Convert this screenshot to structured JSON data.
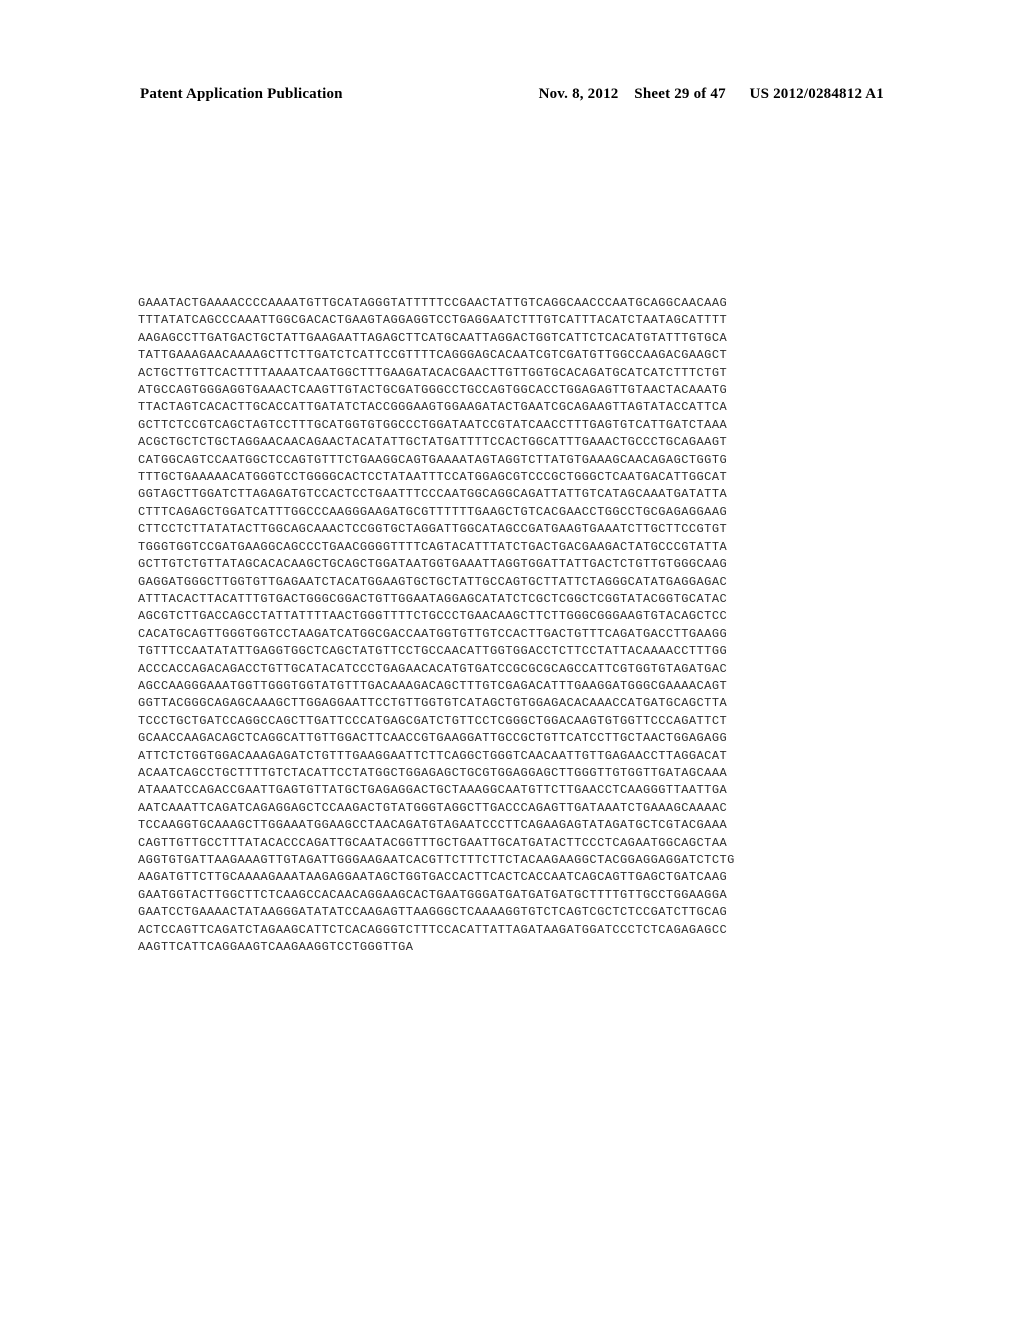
{
  "header": {
    "left": "Patent Application Publication",
    "date": "Nov. 8, 2012",
    "sheet": "Sheet 29 of 47",
    "pubno": "US 2012/0284812 A1"
  },
  "sequence": {
    "lines": [
      "GAAATACTGAAAACCCCAAAATGTTGCATAGGGTATTTTTCCGAACTATTGTCAGGCAACCCAATGCAGGCAACAAG",
      "TTTATATCAGCCCAAATTGGCGACACTGAAGTAGGAGGTCCTGAGGAATCTTTGTCATTTACATCTAATAGCATTTT",
      "AAGAGCCTTGATGACTGCTATTGAAGAATTAGAGCTTCATGCAATTAGGACTGGTCATTCTCACATGTATTTGTGCA",
      "TATTGAAAGAACAAAAGCTTCTTGATCTCATTCCGTTTTCAGGGAGCACAATCGTCGATGTTGGCCAAGACGAAGCT",
      "ACTGCTTGTTCACTTTTAAAATCAATGGCTTTGAAGATACACGAACTTGTTGGTGCACAGATGCATCATCTTTCTGT",
      "ATGCCAGTGGGAGGTGAAACTCAAGTTGTACTGCGATGGGCCTGCCAGTGGCACCTGGAGAGTTGTAACTACAAATG",
      "TTACTAGTCACACTTGCACCATTGATATCTACCGGGAAGTGGAAGATACTGAATCGCAGAAGTTAGTATACCATTCA",
      "GCTTCTCCGTCAGCTAGTCCTTTGCATGGTGTGGCCCTGGATAATCCGTATCAACCTTTGAGTGTCATTGATCTAAA",
      "ACGCTGCTCTGCTAGGAACAACAGAACTACATATTGCTATGATTTTCCACTGGCATTTGAAACTGCCCTGCAGAAGT",
      "CATGGCAGTCCAATGGCTCCAGTGTTTCTGAAGGCAGTGAAAATAGTAGGTCTTATGTGAAAGCAACAGAGCTGGTG",
      "TTTGCTGAAAAACATGGGTCCTGGGGCACTCCTATAATTTCCATGGAGCGTCCCGCTGGGCTCAATGACATTGGCAT",
      "GGTAGCTTGGATCTTAGAGATGTCCACTCCTGAATTTCCCAATGGCAGGCAGATTATTGTCATAGCAAATGATATTA",
      "CTTTCAGAGCTGGATCATTTGGCCCAAGGGAAGATGCGTTTTTTGAAGCTGTCACGAACCTGGCCTGCGAGAGGAAG",
      "CTTCCTCTTATATACTTGGCAGCAAACTCCGGTGCTAGGATTGGCATAGCCGATGAAGTGAAATCTTGCTTCCGTGT",
      "TGGGTGGTCCGATGAAGGCAGCCCTGAACGGGGTTTTCAGTACATTTATCTGACTGACGAAGACTATGCCCGTATTA",
      "GCTTGTCTGTTATAGCACACAAGCTGCAGCTGGATAATGGTGAAATTAGGTGGATTATTGACTCTGTTGTGGGCAAG",
      "GAGGATGGGCTTGGTGTTGAGAATCTACATGGAAGTGCTGCTATTGCCAGTGCTTATTCTAGGGCATATGAGGAGAC",
      "ATTTACACTTACATTTGTGACTGGGCGGACTGTTGGAATAGGAGCATATCTCGCTCGGCTCGGTATACGGTGCATAC",
      "AGCGTCTTGACCAGCCTATTATTTTAACTGGGTTTTCTGCCCTGAACAAGCTTCTTGGGCGGGAAGTGTACAGCTCC",
      "CACATGCAGTTGGGTGGTCCTAAGATCATGGCGACCAATGGTGTTGTCCACTTGACTGTTTCAGATGACCTTGAAGG",
      "TGTTTCCAATATATTGAGGTGGCTCAGCTATGTTCCTGCCAACATTGGTGGACCTCTTCCTATTACAAAACCTTTGG",
      "ACCCACCAGACAGACCTGTTGCATACATCCCTGAGAACACATGTGATCCGCGCGCAGCCATTCGTGGTGTAGATGAC",
      "AGCCAAGGGAAATGGTTGGGTGGTATGTTTGACAAAGACAGCTTTGTCGAGACATTTGAAGGATGGGCGAAAACAGT",
      "GGTTACGGGCAGAGCAAAGCTTGGAGGAATTCCTGTTGGTGTCATAGCTGTGGAGACACAAACCATGATGCAGCTTA",
      "TCCCTGCTGATCCAGGCCAGCTTGATTCCCATGAGCGATCTGTTCCTCGGGCTGGACAAGTGTGGTTCCCAGATTCT",
      "GCAACCAAGACAGCTCAGGCATTGTTGGACTTCAACCGTGAAGGATTGCCGCTGTTCATCCTTGCTAACTGGAGAGG",
      "ATTCTCTGGTGGACAAAGAGATCTGTTTGAAGGAATTCTTCAGGCTGGGTCAACAATTGTTGAGAACCTTAGGACAT",
      "ACAATCAGCCTGCTTTTGTCTACATTCCTATGGCTGGAGAGCTGCGTGGAGGAGCTTGGGTTGTGGTTGATAGCAAA",
      "ATAAATCCAGACCGAATTGAGTGTTATGCTGAGAGGACTGCTAAAGGCAATGTTCTTGAACCTCAAGGGTTAATTGA",
      "AATCAAATTCAGATCAGAGGAGCTCCAAGACTGTATGGGTAGGCTTGACCCAGAGTTGATAAATCTGAAAGCAAAAC",
      "TCCAAGGTGCAAAGCTTGGAAATGGAAGCCTAACAGATGTAGAATCCCTTCAGAAGAGTATAGATGCTCGTACGAAA",
      "CAGTTGTTGCCTTTATACACCCAGATTGCAATACGGTTTGCTGAATTGCATGATACTTCCCTCAGAATGGCAGCTAA",
      "AGGTGTGATTAAGAAAGTTGTAGATTGGGAAGAATCACGTTCTTTCTTCTACAAGAAGGCTACGGAGGAGGATCTCTG",
      "AAGATGTTCTTGCAAAAGAAATAAGAGGAATAGCTGGTGACCACTTCACTCACCAATCAGCAGTTGAGCTGATCAAG",
      "GAATGGTACTTGGCTTCTCAAGCCACAACAGGAAGCACTGAATGGGATGATGATGATGCTTTTGTTGCCTGGAAGGA",
      "GAATCCTGAAAACTATAAGGGATATATCCAAGAGTTAAGGGCTCAAAAGGTGTCTCAGTCGCTCTCCGATCTTGCAG",
      "ACTCCAGTTCAGATCTAGAAGCATTCTCACAGGGTCTTTCCACATTATTAGATAAGATGGATCCCTCTCAGAGAGCC",
      "AAGTTCATTCAGGAAGTCAAGAAGGTCCTGGGTTGA"
    ]
  },
  "style": {
    "background": "#ffffff",
    "text_color": "#2d2d2d",
    "header_font_size": 15,
    "seq_font_size": 12.0,
    "seq_line_height": 17.4,
    "seq_letter_spacing": 0.45
  }
}
